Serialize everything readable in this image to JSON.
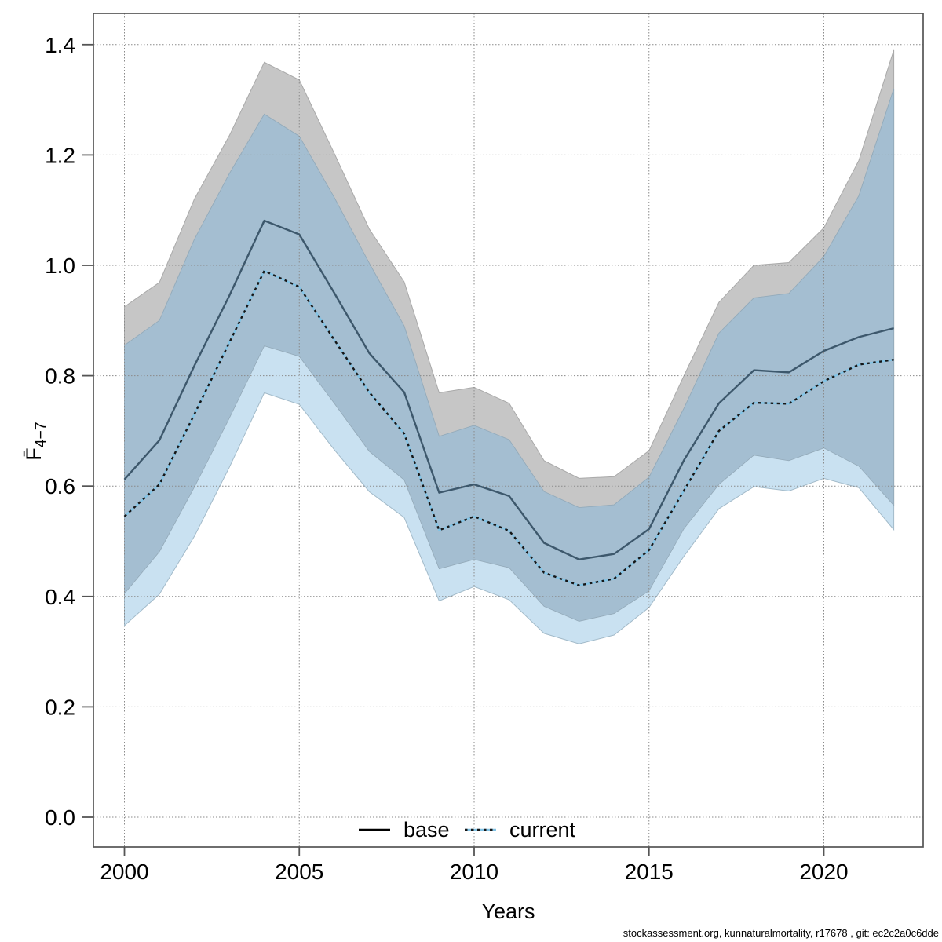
{
  "chart_data": {
    "type": "line",
    "title": "",
    "xlabel": "Years",
    "ylabel": {
      "base": "F̄",
      "subscript": "4−7"
    },
    "caption": "stockassessment.org, kunnaturalmortality, r17678 , git: ec2c2a0c6dde",
    "grid": true,
    "legend_position": "bottom-center-inside",
    "xlim": [
      1999.1,
      2022.85
    ],
    "ylim": [
      -0.05,
      1.46
    ],
    "xticks": [
      2000,
      2005,
      2010,
      2015,
      2020
    ],
    "ytick_labels": [
      "0.0",
      "0.2",
      "0.4",
      "0.6",
      "0.8",
      "1.0",
      "1.2",
      "1.4"
    ],
    "x": [
      2000,
      2001,
      2002,
      2003,
      2004,
      2005,
      2006,
      2007,
      2008,
      2009,
      2010,
      2011,
      2012,
      2013,
      2014,
      2015,
      2016,
      2017,
      2018,
      2019,
      2020,
      2021,
      2022
    ],
    "series": [
      {
        "name": "base",
        "line_style": "solid",
        "line_color": "#3d586c",
        "legend_line_color": "#000000",
        "band_color": "#c6c6c6",
        "band_edge_color": "#a9a9a9",
        "values": [
          0.612,
          0.683,
          0.818,
          0.945,
          1.081,
          1.056,
          0.95,
          0.841,
          0.77,
          0.588,
          0.603,
          0.582,
          0.497,
          0.467,
          0.477,
          0.522,
          0.647,
          0.75,
          0.81,
          0.806,
          0.845,
          0.87,
          0.886
        ],
        "lo": [
          0.405,
          0.481,
          0.598,
          0.723,
          0.854,
          0.835,
          0.75,
          0.663,
          0.611,
          0.45,
          0.467,
          0.452,
          0.382,
          0.355,
          0.369,
          0.41,
          0.523,
          0.603,
          0.656,
          0.646,
          0.669,
          0.636,
          0.565
        ],
        "hi": [
          0.925,
          0.969,
          1.12,
          1.235,
          1.368,
          1.336,
          1.203,
          1.066,
          0.97,
          0.769,
          0.779,
          0.75,
          0.646,
          0.614,
          0.617,
          0.664,
          0.8,
          0.933,
          1.0,
          1.005,
          1.068,
          1.19,
          1.39
        ]
      },
      {
        "name": "current",
        "line_style": "dotted",
        "line_color": "#161616",
        "line_underlay_color": "#82c3e5",
        "legend_line_color": "#161616",
        "band_color": "#c9e1f1",
        "band_edge_color": "#a2bac9",
        "overlap_band_color": "#a4bed1",
        "overlap_edge_color": "#93a9b8",
        "values": [
          0.545,
          0.603,
          0.73,
          0.86,
          0.99,
          0.961,
          0.865,
          0.77,
          0.695,
          0.52,
          0.545,
          0.519,
          0.443,
          0.42,
          0.432,
          0.484,
          0.592,
          0.7,
          0.751,
          0.749,
          0.79,
          0.82,
          0.829
        ],
        "lo": [
          0.347,
          0.404,
          0.509,
          0.634,
          0.769,
          0.748,
          0.666,
          0.59,
          0.543,
          0.392,
          0.418,
          0.394,
          0.333,
          0.314,
          0.33,
          0.38,
          0.473,
          0.559,
          0.599,
          0.591,
          0.614,
          0.597,
          0.521
        ],
        "hi": [
          0.855,
          0.9,
          1.047,
          1.166,
          1.274,
          1.234,
          1.123,
          1.004,
          0.89,
          0.69,
          0.71,
          0.684,
          0.59,
          0.561,
          0.566,
          0.616,
          0.741,
          0.877,
          0.941,
          0.949,
          1.016,
          1.126,
          1.32
        ]
      }
    ],
    "axis_color": "#555555",
    "grid_color": "#8a8a8a",
    "text_color": "#000000"
  }
}
